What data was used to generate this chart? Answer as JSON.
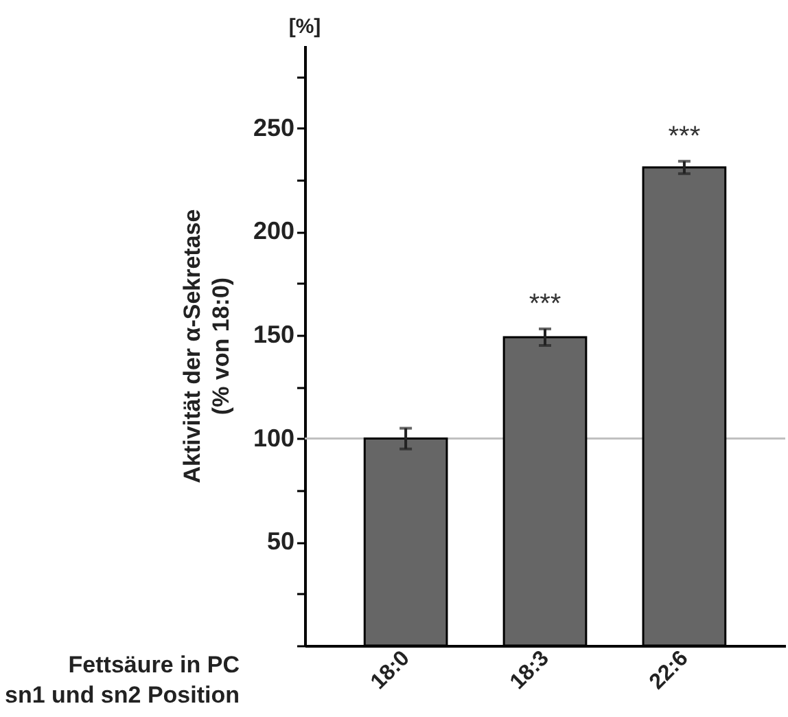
{
  "chart_data": {
    "type": "bar",
    "categories": [
      "18:0",
      "18:3",
      "22:6"
    ],
    "values": [
      100,
      149,
      231
    ],
    "errors": [
      5,
      4,
      3
    ],
    "color": "#666666",
    "ylabel": "Aktivität der α-Sekretase\n(% von 18:0)",
    "xlabel": "Fettsäure in PC\nsn1 und sn2 Position",
    "ylim": [
      0,
      290
    ],
    "yticks": [
      {
        "value": 0,
        "label": null
      },
      {
        "value": 25,
        "label": null
      },
      50,
      {
        "value": 75,
        "label": null
      },
      100,
      {
        "value": 125,
        "label": null
      },
      150,
      {
        "value": 175,
        "label": null
      },
      200,
      {
        "value": 225,
        "label": null
      },
      250,
      {
        "value": 275,
        "label": null
      }
    ],
    "ref_lines": [
      {
        "axis": "y",
        "value": 100,
        "color": "#c0c0c0"
      }
    ],
    "annotations": [
      "[%]",
      {
        "text": "***",
        "x": "18:3",
        "y": 153
      },
      {
        "text": "***",
        "x": "22:6",
        "y": 234
      }
    ]
  }
}
